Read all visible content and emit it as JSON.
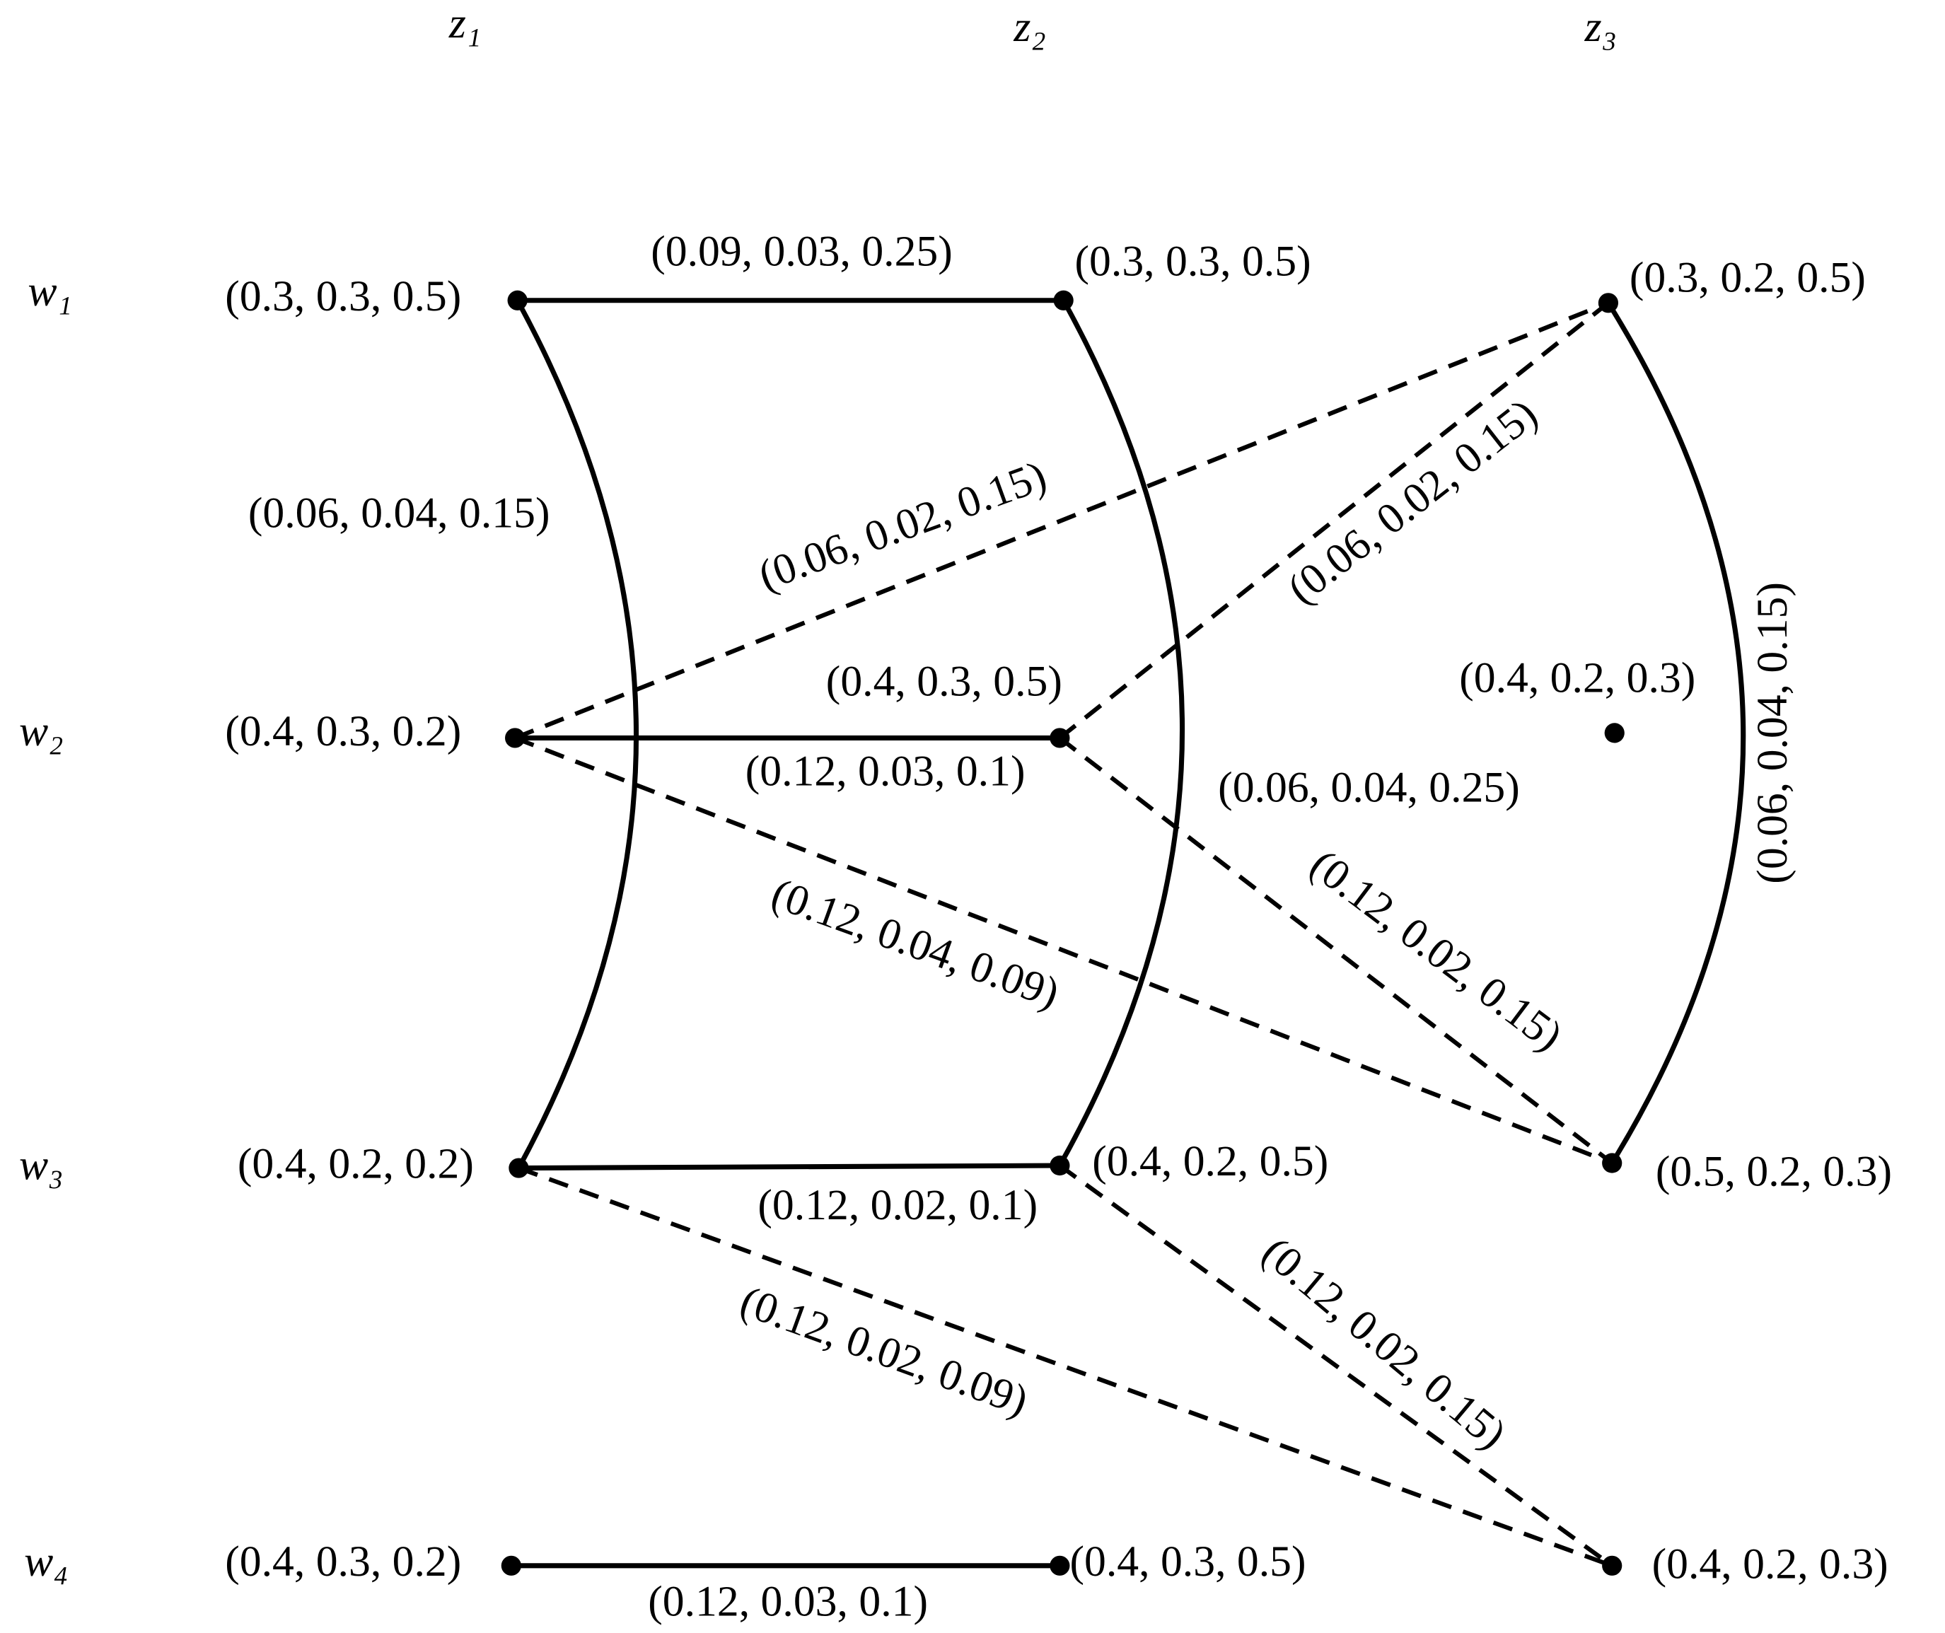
{
  "columns": [
    "z₁",
    "z₂",
    "z₃"
  ],
  "rows": [
    "w₁",
    "w₂",
    "w₃",
    "w₄"
  ],
  "nodes": [
    {
      "label": "(0.3, 0.3, 0.5)"
    },
    {
      "label": "(0.3, 0.3, 0.5)"
    },
    {
      "label": "(0.3, 0.2, 0.5)"
    },
    {
      "label": "(0.4, 0.3, 0.2)"
    },
    {
      "label": "(0.4, 0.3, 0.5)"
    },
    {
      "label": "(0.4, 0.2, 0.3)"
    },
    {
      "label": "(0.4, 0.2, 0.2)"
    },
    {
      "label": "(0.4, 0.2, 0.5)"
    },
    {
      "label": "(0.5, 0.2, 0.3)"
    },
    {
      "label": "(0.4, 0.3, 0.2)"
    },
    {
      "label": "(0.4, 0.3, 0.5)"
    },
    {
      "label": "(0.4, 0.2, 0.3)"
    }
  ],
  "edges": [
    {
      "from": 0,
      "to": 1,
      "style": "solid",
      "label": "(0.09, 0.03, 0.25)"
    },
    {
      "from": 0,
      "to": 6,
      "style": "solid",
      "label": "(0.06, 0.04, 0.15)"
    },
    {
      "from": 1,
      "to": 7,
      "style": "solid",
      "label": "(0.06, 0.04, 0.25)"
    },
    {
      "from": 2,
      "to": 8,
      "style": "solid",
      "label": "(0.06, 0.04, 0.15)"
    },
    {
      "from": 3,
      "to": 4,
      "style": "solid",
      "label": "(0.12, 0.03, 0.1)"
    },
    {
      "from": 3,
      "to": 2,
      "style": "dashed",
      "label": "(0.06, 0.02, 0.15)"
    },
    {
      "from": 4,
      "to": 2,
      "style": "dashed",
      "label": "(0.06, 0.02, 0.15)"
    },
    {
      "from": 3,
      "to": 8,
      "style": "dashed",
      "label": "(0.12, 0.04, 0.09)"
    },
    {
      "from": 4,
      "to": 8,
      "style": "dashed",
      "label": "(0.12, 0.02, 0.15)"
    },
    {
      "from": 6,
      "to": 7,
      "style": "solid",
      "label": "(0.12, 0.02, 0.1)"
    },
    {
      "from": 6,
      "to": 11,
      "style": "dashed",
      "label": "(0.12, 0.02, 0.09)"
    },
    {
      "from": 7,
      "to": 11,
      "style": "dashed",
      "label": "(0.12, 0.02, 0.15)"
    },
    {
      "from": 9,
      "to": 10,
      "style": "solid",
      "label": "(0.12, 0.03, 0.1)"
    }
  ]
}
